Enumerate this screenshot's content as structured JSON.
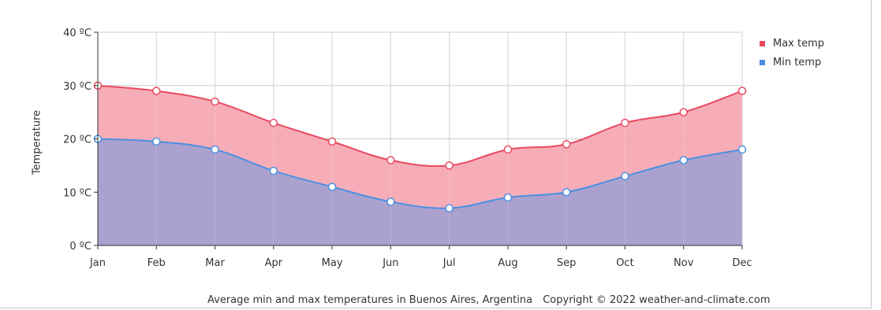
{
  "chart_data": {
    "type": "area",
    "categories": [
      "Jan",
      "Feb",
      "Mar",
      "Apr",
      "May",
      "Jun",
      "Jul",
      "Aug",
      "Sep",
      "Oct",
      "Nov",
      "Dec"
    ],
    "series": [
      {
        "name": "Max temp",
        "values": [
          30,
          29,
          27,
          23,
          19.5,
          16,
          15,
          18,
          19,
          23,
          25,
          29
        ],
        "color": "#e8495f",
        "fill": "#f6a9b4"
      },
      {
        "name": "Min temp",
        "values": [
          20,
          19.5,
          18,
          14,
          11,
          8.2,
          7,
          9,
          10,
          13,
          16,
          18
        ],
        "color": "#4a90e2",
        "fill": "#aba1ce"
      }
    ],
    "ylabel": "Temperature",
    "ylim": [
      0,
      40
    ],
    "yticks": [
      "0 ºC",
      "10 ºC",
      "20 ºC",
      "30 ºC",
      "40 ºC"
    ],
    "ytick_values": [
      0,
      10,
      20,
      30,
      40
    ],
    "grid": true,
    "legend_position": "top-right"
  },
  "footer": {
    "caption": "Average min and max temperatures in Buenos Aires, Argentina",
    "copyright": "Copyright © 2022  weather-and-climate.com"
  }
}
